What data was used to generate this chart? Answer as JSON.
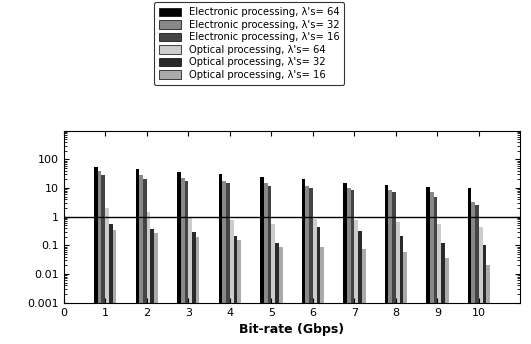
{
  "title": "",
  "xlabel": "Bit-rate (Gbps)",
  "ylabel": "",
  "bit_rates": [
    1,
    2,
    3,
    4,
    5,
    6,
    7,
    8,
    9,
    10
  ],
  "electronic_64": [
    55,
    45,
    35,
    30,
    25,
    20,
    15,
    13,
    11,
    10
  ],
  "electronic_32": [
    38,
    28,
    22,
    18,
    15,
    12,
    10,
    8.5,
    7,
    3.2
  ],
  "electronic_16": [
    28,
    20,
    17,
    15,
    12,
    10,
    8.5,
    7,
    5,
    2.5
  ],
  "optical_64": [
    2.0,
    1.5,
    0.9,
    0.75,
    0.55,
    0.8,
    0.75,
    0.65,
    0.55,
    0.45
  ],
  "optical_32": [
    0.55,
    0.38,
    0.3,
    0.22,
    0.12,
    0.45,
    0.32,
    0.22,
    0.12,
    0.1
  ],
  "optical_16": [
    0.35,
    0.27,
    0.2,
    0.15,
    0.085,
    0.09,
    0.075,
    0.06,
    0.035,
    0.02
  ],
  "bar_colors": [
    "#000000",
    "#888888",
    "#444444",
    "#cccccc",
    "#2a2a2a",
    "#aaaaaa"
  ],
  "legend_colors": [
    "#000000",
    "#888888",
    "#444444",
    "#cccccc",
    "#2a2a2a",
    "#aaaaaa"
  ],
  "legend_labels": [
    "Electronic processing, λ's= 64",
    "Electronic processing, λ's= 32",
    "Electronic processing, λ's= 16",
    "Optical processing, λ's= 64",
    "Optical processing, λ's= 32",
    "Optical processing, λ's= 16"
  ],
  "hline_y": 1.0,
  "ylim_low": 0.001,
  "ylim_high": 1000,
  "xlim_low": 0,
  "xlim_high": 11
}
